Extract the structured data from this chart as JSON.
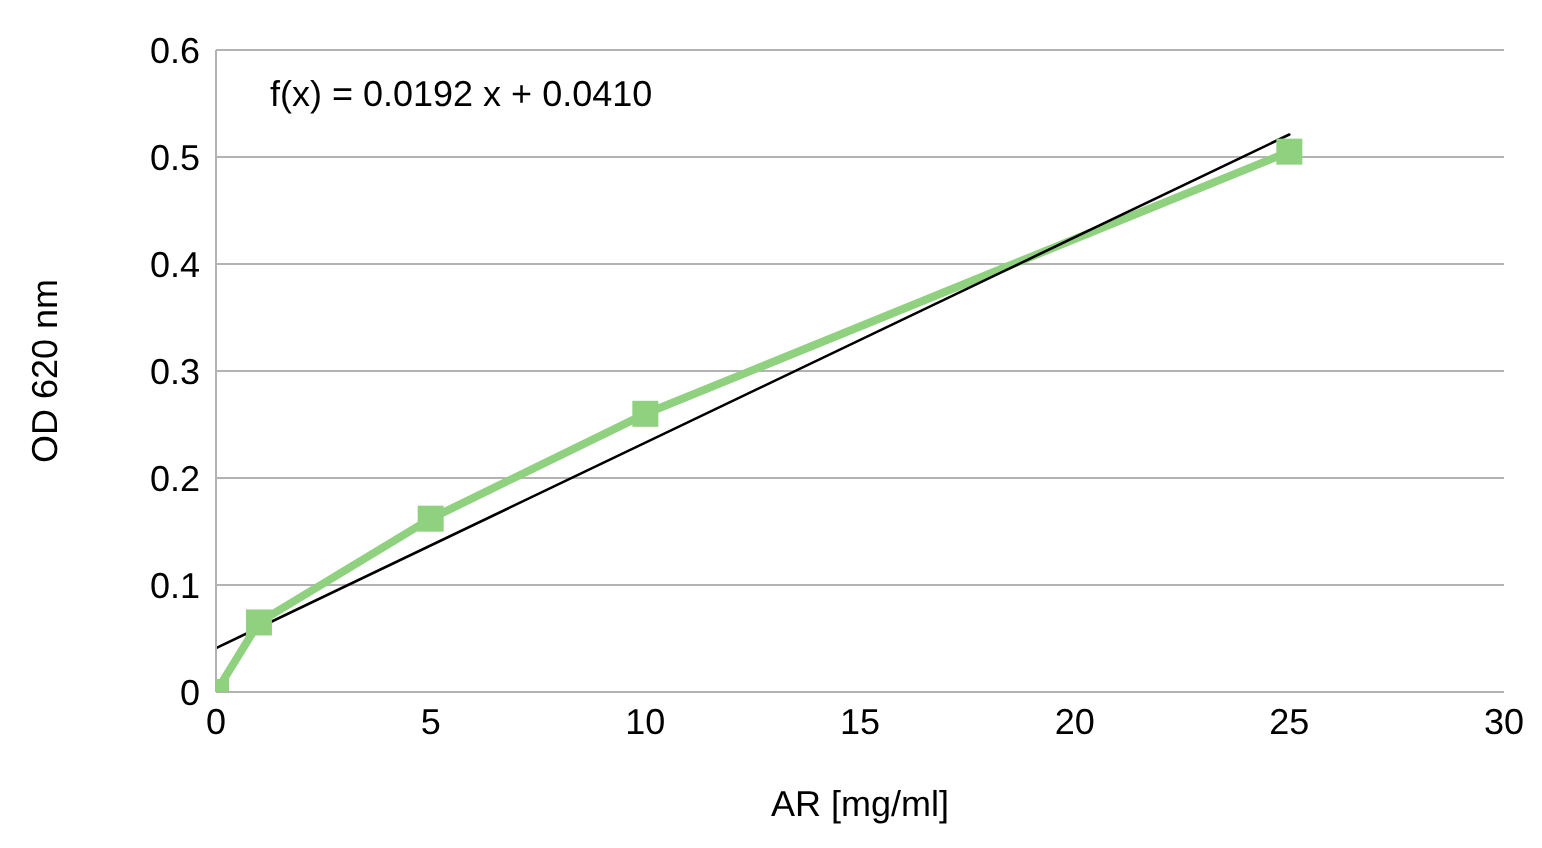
{
  "chart_data": {
    "type": "line",
    "xlabel": "AR [mg/ml]",
    "ylabel": "OD 620 nm",
    "annotations": [
      "f(x) = 0.0192 x + 0.0410"
    ],
    "x": [
      0,
      1,
      5,
      10,
      25
    ],
    "series": [
      {
        "color": "#8fd17f",
        "values": [
          0,
          0.065,
          0.162,
          0.26,
          0.505
        ]
      },
      {
        "type": "line",
        "x": [
          0,
          25
        ],
        "values": [
          0.041,
          0.521
        ],
        "color": "#000000",
        "marker": "none"
      }
    ],
    "xlim": [
      0,
      30
    ],
    "xticks": [
      0,
      5,
      10,
      15,
      20,
      25,
      30
    ],
    "ylim": [
      0,
      0.6
    ],
    "yticks": [
      0,
      0.1,
      0.2,
      0.3,
      0.4,
      0.5,
      0.6
    ],
    "grid": "y",
    "marker": "square",
    "legend": false
  }
}
